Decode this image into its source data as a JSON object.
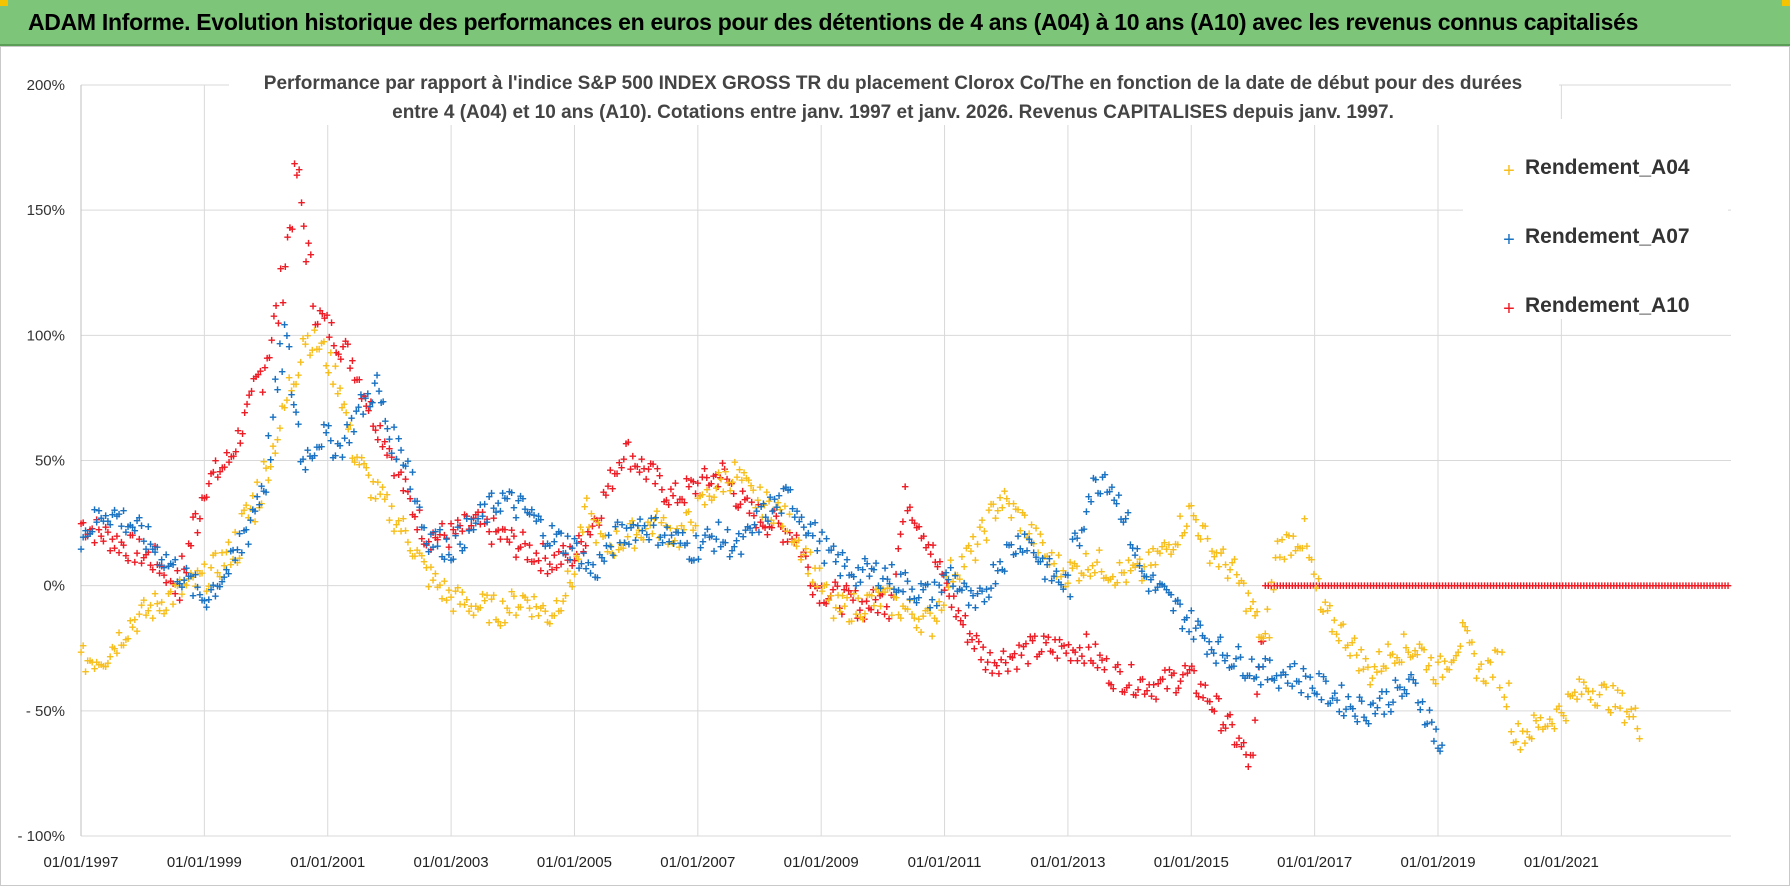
{
  "header": {
    "title": "ADAM Informe. Evolution historique des performances en euros pour des détentions de 4 ans (A04) à 10 ans (A10) avec les revenus connus capitalisés"
  },
  "colors": {
    "header_bg": "#7dc579",
    "A04": "#f7bf1e",
    "A07": "#1a72c2",
    "A10": "#ee1c25",
    "grid": "#d9d9d9"
  },
  "chart_data": {
    "type": "scatter",
    "title_line1": "Performance par rapport à l'indice S&P 500 INDEX GROSS TR  du placement Clorox Co/The en fonction de la date de début pour des durées",
    "title_line2": "entre 4 (A04) et 10 ans (A10).  Cotations entre janv. 1997 et janv. 2026. Revenus CAPITALISES  depuis janv. 1997.",
    "x_range": [
      1997.0,
      2023.75
    ],
    "ylim": [
      -100,
      200
    ],
    "y_ticks": [
      200,
      150,
      100,
      50,
      0,
      -50,
      -100
    ],
    "y_tick_labels": [
      "200%",
      "150%",
      "100%",
      "50%",
      "0%",
      "- 50%",
      "- 100%"
    ],
    "x_ticks": [
      1997,
      1999,
      2001,
      2003,
      2005,
      2007,
      2009,
      2011,
      2013,
      2015,
      2017,
      2019,
      2021
    ],
    "x_tick_labels": [
      "01/01/1997",
      "01/01/1999",
      "01/01/2001",
      "01/01/2003",
      "01/01/2005",
      "01/01/2007",
      "01/01/2009",
      "01/01/2011",
      "01/01/2013",
      "01/01/2015",
      "01/01/2017",
      "01/01/2019",
      "01/01/2021"
    ],
    "marker": "+",
    "legend": [
      "Rendement_A04",
      "Rendement_A07",
      "Rendement_A10"
    ],
    "series": [
      {
        "name": "Rendement_A04",
        "color": "#f7bf1e",
        "points": [
          [
            1997.0,
            -30
          ],
          [
            1997.4,
            -28
          ],
          [
            1997.8,
            -15
          ],
          [
            1998.2,
            -8
          ],
          [
            1998.6,
            -2
          ],
          [
            1999.0,
            3
          ],
          [
            1999.5,
            15
          ],
          [
            2000.0,
            45
          ],
          [
            2000.3,
            70
          ],
          [
            2000.6,
            100
          ],
          [
            2000.9,
            95
          ],
          [
            2001.2,
            80
          ],
          [
            2001.4,
            55
          ],
          [
            2001.7,
            40
          ],
          [
            2002.0,
            30
          ],
          [
            2002.3,
            20
          ],
          [
            2002.6,
            5
          ],
          [
            2003.0,
            -5
          ],
          [
            2003.4,
            -8
          ],
          [
            2003.8,
            -10
          ],
          [
            2004.2,
            -5
          ],
          [
            2004.6,
            -12
          ],
          [
            2005.0,
            5
          ],
          [
            2005.2,
            30
          ],
          [
            2005.5,
            15
          ],
          [
            2005.9,
            20
          ],
          [
            2006.3,
            25
          ],
          [
            2006.7,
            20
          ],
          [
            2007.0,
            30
          ],
          [
            2007.3,
            40
          ],
          [
            2007.6,
            45
          ],
          [
            2007.9,
            35
          ],
          [
            2008.3,
            30
          ],
          [
            2008.6,
            20
          ],
          [
            2008.9,
            5
          ],
          [
            2009.2,
            -10
          ],
          [
            2009.6,
            -8
          ],
          [
            2010.0,
            -5
          ],
          [
            2010.4,
            -10
          ],
          [
            2010.8,
            -15
          ],
          [
            2011.1,
            5
          ],
          [
            2011.5,
            15
          ],
          [
            2011.9,
            35
          ],
          [
            2012.3,
            25
          ],
          [
            2012.7,
            10
          ],
          [
            2013.0,
            5
          ],
          [
            2013.4,
            10
          ],
          [
            2013.8,
            5
          ],
          [
            2014.2,
            5
          ],
          [
            2014.6,
            15
          ],
          [
            2015.0,
            30
          ],
          [
            2015.3,
            15
          ],
          [
            2015.7,
            5
          ],
          [
            2016.0,
            -10
          ],
          [
            2016.2,
            -25
          ],
          [
            2016.4,
            15
          ],
          [
            2016.8,
            20
          ],
          [
            2017.1,
            -10
          ],
          [
            2017.5,
            -20
          ],
          [
            2017.9,
            -35
          ],
          [
            2018.3,
            -25
          ],
          [
            2018.7,
            -25
          ],
          [
            2019.0,
            -35
          ],
          [
            2019.4,
            -20
          ],
          [
            2019.7,
            -35
          ],
          [
            2020.0,
            -30
          ],
          [
            2020.3,
            -60
          ],
          [
            2020.7,
            -55
          ],
          [
            2021.0,
            -50
          ],
          [
            2021.4,
            -40
          ],
          [
            2021.8,
            -45
          ],
          [
            2022.1,
            -50
          ],
          [
            2022.3,
            -57
          ]
        ]
      },
      {
        "name": "Rendement_A07",
        "color": "#1a72c2",
        "points": [
          [
            1997.0,
            20
          ],
          [
            1997.4,
            30
          ],
          [
            1997.8,
            25
          ],
          [
            1998.2,
            15
          ],
          [
            1998.6,
            5
          ],
          [
            1999.0,
            -5
          ],
          [
            1999.5,
            10
          ],
          [
            2000.0,
            45
          ],
          [
            2000.3,
            100
          ],
          [
            2000.6,
            50
          ],
          [
            2000.9,
            60
          ],
          [
            2001.2,
            55
          ],
          [
            2001.5,
            70
          ],
          [
            2001.8,
            80
          ],
          [
            2002.0,
            60
          ],
          [
            2002.3,
            50
          ],
          [
            2002.6,
            20
          ],
          [
            2003.0,
            15
          ],
          [
            2003.4,
            25
          ],
          [
            2003.8,
            35
          ],
          [
            2004.2,
            30
          ],
          [
            2004.6,
            20
          ],
          [
            2005.0,
            15
          ],
          [
            2005.3,
            5
          ],
          [
            2005.7,
            20
          ],
          [
            2006.1,
            25
          ],
          [
            2006.5,
            20
          ],
          [
            2006.9,
            15
          ],
          [
            2007.3,
            20
          ],
          [
            2007.7,
            15
          ],
          [
            2008.1,
            30
          ],
          [
            2008.5,
            35
          ],
          [
            2008.9,
            20
          ],
          [
            2009.2,
            10
          ],
          [
            2009.6,
            5
          ],
          [
            2010.0,
            5
          ],
          [
            2010.4,
            0
          ],
          [
            2010.8,
            -5
          ],
          [
            2011.1,
            5
          ],
          [
            2011.5,
            -10
          ],
          [
            2011.9,
            10
          ],
          [
            2012.3,
            20
          ],
          [
            2012.7,
            5
          ],
          [
            2013.0,
            0
          ],
          [
            2013.3,
            35
          ],
          [
            2013.6,
            45
          ],
          [
            2013.9,
            30
          ],
          [
            2014.2,
            5
          ],
          [
            2014.6,
            -5
          ],
          [
            2015.0,
            -15
          ],
          [
            2015.4,
            -25
          ],
          [
            2015.8,
            -30
          ],
          [
            2016.2,
            -35
          ],
          [
            2016.6,
            -35
          ],
          [
            2017.0,
            -40
          ],
          [
            2017.4,
            -45
          ],
          [
            2017.8,
            -50
          ],
          [
            2018.2,
            -45
          ],
          [
            2018.6,
            -40
          ],
          [
            2018.9,
            -55
          ],
          [
            2019.1,
            -70
          ]
        ]
      },
      {
        "name": "Rendement_A10",
        "color": "#ee1c25",
        "points": [
          [
            1997.0,
            25
          ],
          [
            1997.4,
            20
          ],
          [
            1997.8,
            15
          ],
          [
            1998.2,
            10
          ],
          [
            1998.6,
            0
          ],
          [
            1999.0,
            40
          ],
          [
            1999.4,
            50
          ],
          [
            1999.8,
            75
          ],
          [
            2000.2,
            110
          ],
          [
            2000.5,
            165
          ],
          [
            2000.8,
            110
          ],
          [
            2001.1,
            100
          ],
          [
            2001.4,
            90
          ],
          [
            2001.7,
            70
          ],
          [
            2002.0,
            55
          ],
          [
            2002.3,
            35
          ],
          [
            2002.6,
            20
          ],
          [
            2003.0,
            20
          ],
          [
            2003.4,
            25
          ],
          [
            2003.8,
            20
          ],
          [
            2004.2,
            15
          ],
          [
            2004.6,
            10
          ],
          [
            2005.0,
            12
          ],
          [
            2005.4,
            30
          ],
          [
            2005.8,
            55
          ],
          [
            2006.2,
            45
          ],
          [
            2006.6,
            35
          ],
          [
            2007.0,
            40
          ],
          [
            2007.4,
            45
          ],
          [
            2007.8,
            30
          ],
          [
            2008.2,
            25
          ],
          [
            2008.6,
            20
          ],
          [
            2008.9,
            0
          ],
          [
            2009.3,
            -5
          ],
          [
            2009.7,
            -8
          ],
          [
            2010.1,
            -5
          ],
          [
            2010.4,
            35
          ],
          [
            2010.7,
            20
          ],
          [
            2011.0,
            0
          ],
          [
            2011.3,
            -15
          ],
          [
            2011.7,
            -30
          ],
          [
            2012.1,
            -28
          ],
          [
            2012.5,
            -25
          ],
          [
            2012.9,
            -25
          ],
          [
            2013.3,
            -25
          ],
          [
            2013.7,
            -35
          ],
          [
            2014.1,
            -38
          ],
          [
            2014.5,
            -40
          ],
          [
            2014.9,
            -35
          ],
          [
            2015.3,
            -45
          ],
          [
            2015.7,
            -60
          ],
          [
            2016.0,
            -73
          ],
          [
            2016.2,
            0
          ],
          [
            2023.75,
            0
          ]
        ]
      }
    ]
  }
}
